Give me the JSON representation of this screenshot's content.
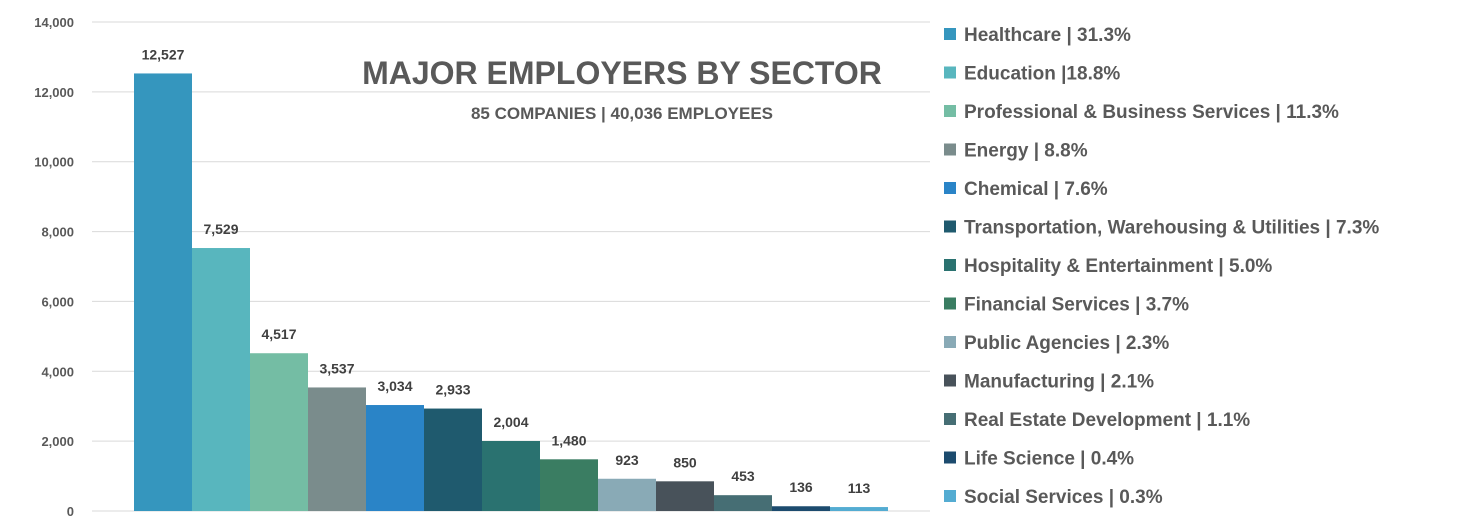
{
  "chart_data": {
    "type": "bar",
    "title": "MAJOR EMPLOYERS BY SECTOR",
    "subtitle": "85 COMPANIES | 40,036 EMPLOYEES",
    "ylim": [
      0,
      14000
    ],
    "yticks": [
      0,
      2000,
      4000,
      6000,
      8000,
      10000,
      12000,
      14000
    ],
    "ytick_labels": [
      "0",
      "2,000",
      "4,000",
      "6,000",
      "8,000",
      "10,000",
      "12,000",
      "14,000"
    ],
    "grid": true,
    "legend_position": "right",
    "categories": [
      "Healthcare",
      "Education",
      "Professional & Business Services",
      "Energy",
      "Chemical",
      "Transportation, Warehousing & Utilities",
      "Hospitality & Entertainment",
      "Financial Services",
      "Public Agencies",
      "Manufacturing",
      "Real Estate Development",
      "Life Science",
      "Social Services"
    ],
    "values": [
      12527,
      7529,
      4517,
      3537,
      3034,
      2933,
      2004,
      1480,
      923,
      850,
      453,
      136,
      113
    ],
    "value_labels": [
      "12,527",
      "7,529",
      "4,517",
      "3,537",
      "3,034",
      "2,933",
      "2,004",
      "1,480",
      "923",
      "850",
      "453",
      "136",
      "113"
    ],
    "legend_entries": [
      "Healthcare | 31.3%",
      "Education |18.8%",
      "Professional & Business Services | 11.3%",
      "Energy | 8.8%",
      "Chemical | 7.6%",
      "Transportation, Warehousing & Utilities | 7.3%",
      "Hospitality & Entertainment | 5.0%",
      "Financial Services | 3.7%",
      "Public Agencies | 2.3%",
      "Manufacturing | 2.1%",
      "Real Estate Development | 1.1%",
      "Life Science | 0.4%",
      "Social Services | 0.3%"
    ],
    "colors": [
      "#3596BE",
      "#58B6BE",
      "#74BDA4",
      "#7A8C8C",
      "#2A84C7",
      "#1F5A6E",
      "#2A7270",
      "#3A7D62",
      "#89AAB6",
      "#48525A",
      "#466E74",
      "#1C4B6E",
      "#54ACD2"
    ]
  }
}
